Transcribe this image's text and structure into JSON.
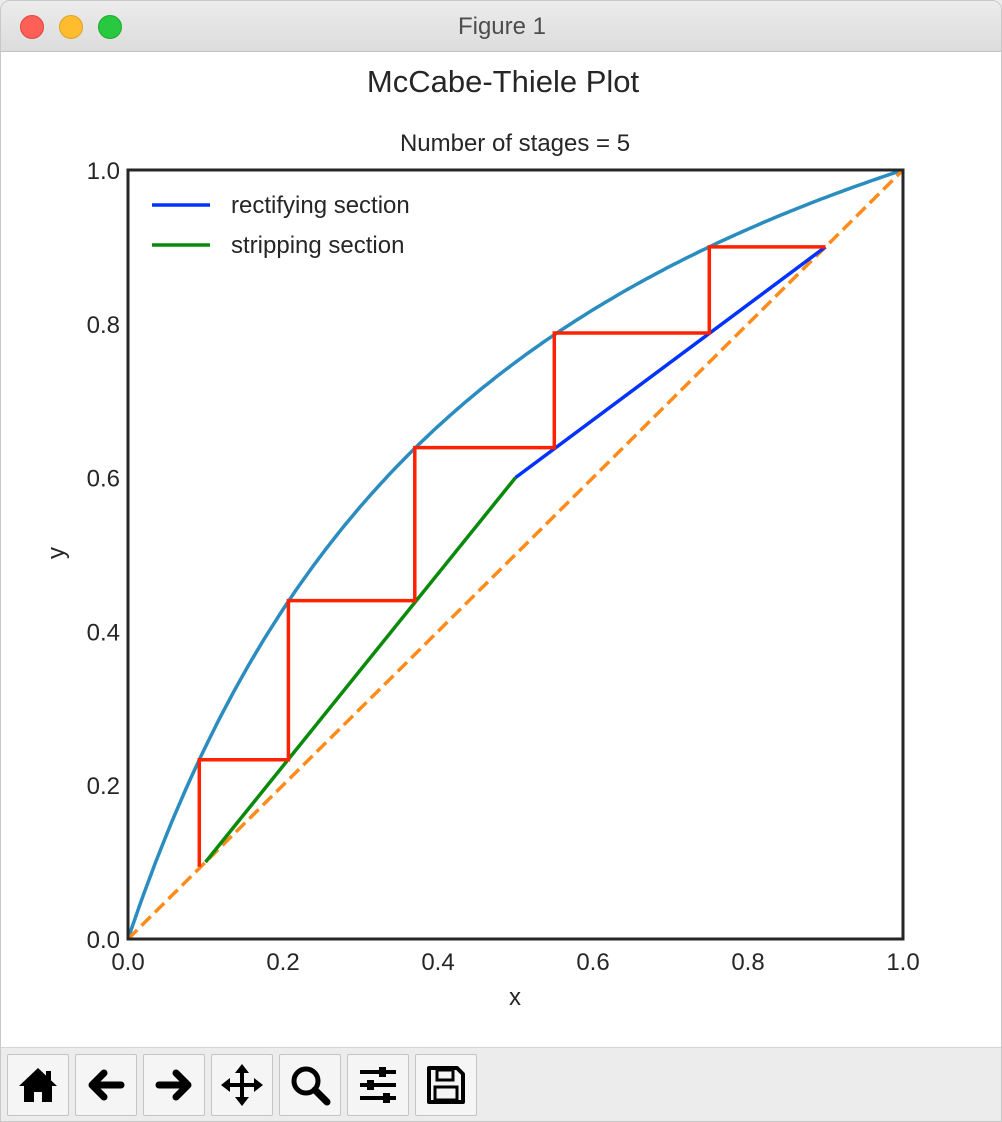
{
  "window": {
    "title": "Figure 1"
  },
  "chart_data": {
    "type": "line",
    "suptitle": "McCabe-Thiele Plot",
    "title": "Number of stages = 5",
    "xlabel": "x",
    "ylabel": "y",
    "xlim": [
      0,
      1
    ],
    "ylim": [
      0,
      1
    ],
    "xticks": [
      "0.0",
      "0.2",
      "0.4",
      "0.6",
      "0.8",
      "1.0"
    ],
    "yticks": [
      "0.0",
      "0.2",
      "0.4",
      "0.6",
      "0.8",
      "1.0"
    ],
    "grid": false,
    "legend_position": "top-left",
    "equilibrium_curve": {
      "color": "#2b8cbf",
      "relative_volatility": 3.0,
      "x": [
        0.0,
        0.05,
        0.1,
        0.2,
        0.3,
        0.4,
        0.5,
        0.6,
        0.7,
        0.8,
        0.9,
        1.0
      ],
      "y": [
        0.0,
        0.136,
        0.25,
        0.429,
        0.5625,
        0.667,
        0.75,
        0.818,
        0.875,
        0.923,
        0.964,
        1.0
      ]
    },
    "diagonal": {
      "color": "#ff8c1a",
      "style": "dashed",
      "x": [
        0,
        1
      ],
      "y": [
        0,
        1
      ]
    },
    "series": [
      {
        "name": "rectifying section",
        "color": "#0033ff",
        "x": [
          0.5,
          0.9
        ],
        "y": [
          0.6,
          0.9
        ]
      },
      {
        "name": "stripping section",
        "color": "#0a8a0a",
        "x": [
          0.1,
          0.5
        ],
        "y": [
          0.1,
          0.6
        ]
      }
    ],
    "stages": {
      "color": "#ff2200",
      "count": 5,
      "x": [
        0.9,
        0.75,
        0.75,
        0.55,
        0.55,
        0.37,
        0.37,
        0.207,
        0.207,
        0.092,
        0.092
      ],
      "y": [
        0.9,
        0.9,
        0.788,
        0.788,
        0.639,
        0.639,
        0.44,
        0.44,
        0.233,
        0.233,
        0.094
      ]
    }
  },
  "toolbar": {
    "buttons": [
      "home-icon",
      "back-arrow-icon",
      "forward-arrow-icon",
      "move-icon",
      "zoom-icon",
      "configure-subplots-icon",
      "save-icon"
    ]
  }
}
